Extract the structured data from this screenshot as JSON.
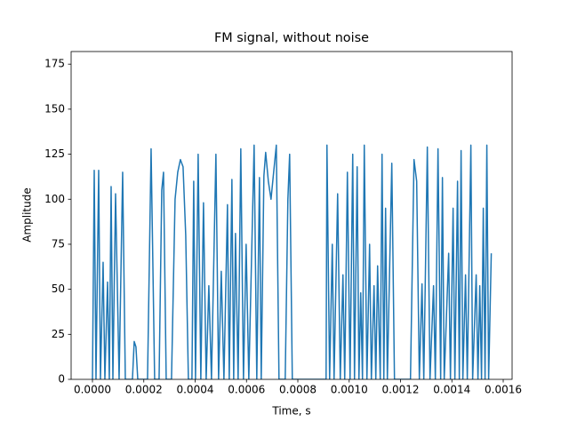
{
  "chart_data": {
    "type": "line",
    "title": "FM signal, without noise",
    "x_label": "Time, s",
    "y_label": "Amplitude",
    "x": [
      0,
      6.9e-06,
      1.38e-05,
      2.42e-05,
      3.11e-05,
      4.15e-05,
      4.84e-05,
      5.88e-05,
      6.57e-05,
      7.27e-05,
      7.96e-05,
      9e-05,
      0.0001038,
      0.0001176,
      0.000128,
      0.0001557,
      0.0001626,
      0.0001695,
      0.0001765,
      0.0002145,
      0.0002284,
      0.0002422,
      0.0002595,
      0.0002699,
      0.0002768,
      0.0002872,
      0.0003079,
      0.0003218,
      0.0003322,
      0.0003425,
      0.0003529,
      0.0003633,
      0.0003737,
      0.0003875,
      0.0003944,
      0.0004014,
      0.0004117,
      0.0004221,
      0.0004325,
      0.0004429,
      0.0004533,
      0.0004636,
      0.0004809,
      0.0004913,
      0.0005017,
      0.0005121,
      0.0005259,
      0.0005328,
      0.0005432,
      0.0005501,
      0.0005571,
      0.0005674,
      0.0005778,
      0.0005882,
      0.0005986,
      0.000609,
      0.0006297,
      0.0006401,
      0.0006505,
      0.0006574,
      0.0006678,
      0.0006747,
      0.0006851,
      0.0006955,
      0.0007058,
      0.0007162,
      0.0007266,
      0.0007508,
      0.0007612,
      0.0007681,
      0.0007785,
      0.0007993,
      0.00091,
      0.0009134,
      0.0009238,
      0.0009342,
      0.0009411,
      0.000955,
      0.0009653,
      0.0009757,
      0.0009826,
      0.000993,
      0.0010034,
      0.0010138,
      0.0010207,
      0.0010311,
      0.001038,
      0.0010449,
      0.0010518,
      0.0010588,
      0.0010691,
      0.0010795,
      0.0010864,
      0.0010968,
      0.0011037,
      0.0011107,
      0.001121,
      0.001128,
      0.0011349,
      0.0011418,
      0.0011487,
      0.001166,
      0.0011764,
      0.0011902,
      0.0012387,
      0.0012525,
      0.0012629,
      0.0012733,
      0.0012837,
      0.0012906,
      0.0013044,
      0.0013148,
      0.0013286,
      0.0013356,
      0.001346,
      0.0013563,
      0.0013632,
      0.0013702,
      0.0013875,
      0.0013944,
      0.0014048,
      0.0014117,
      0.0014221,
      0.001429,
      0.0014359,
      0.0014428,
      0.0014532,
      0.0014601,
      0.001474,
      0.0014809,
      0.0014947,
      0.0015016,
      0.0015086,
      0.0015155,
      0.0015224,
      0.0015293,
      0.0015362,
      0.0015432,
      0.0015535
    ],
    "series": [
      {
        "color": "#1f77b4",
        "values": [
          0,
          116,
          0,
          116,
          0,
          65,
          0,
          54,
          0,
          107,
          0,
          103,
          0,
          115,
          0,
          0,
          21,
          18,
          0,
          0,
          128,
          0,
          0,
          105,
          115,
          0,
          0,
          100,
          115,
          122,
          118,
          80,
          0,
          0,
          110,
          0,
          125,
          0,
          98,
          0,
          52,
          0,
          125,
          0,
          60,
          0,
          97,
          0,
          111,
          0,
          81,
          0,
          128,
          0,
          75,
          0,
          130,
          0,
          112,
          0,
          113,
          126,
          110,
          100,
          115,
          130,
          0,
          0,
          100,
          125,
          0,
          0,
          0,
          130,
          0,
          75,
          0,
          103,
          0,
          58,
          0,
          115,
          0,
          125,
          0,
          118,
          0,
          48,
          0,
          130,
          0,
          75,
          0,
          52,
          0,
          63,
          0,
          125,
          0,
          95,
          0,
          120,
          0,
          0,
          0,
          122,
          110,
          0,
          53,
          0,
          129,
          0,
          52,
          0,
          128,
          0,
          112,
          0,
          70,
          0,
          95,
          0,
          110,
          0,
          127,
          0,
          58,
          0,
          130,
          0,
          58,
          0,
          52,
          0,
          95,
          0,
          130,
          0,
          70
        ]
      }
    ],
    "xlim": [
      -8.31e-05,
      0.0016346
    ],
    "ylim": [
      0,
      182
    ],
    "xticks": [
      {
        "value": 0,
        "label": "0.0000"
      },
      {
        "value": 0.0002,
        "label": "0.0002"
      },
      {
        "value": 0.0004,
        "label": "0.0004"
      },
      {
        "value": 0.0006,
        "label": "0.0006"
      },
      {
        "value": 0.0008,
        "label": "0.0008"
      },
      {
        "value": 0.001,
        "label": "0.0010"
      },
      {
        "value": 0.0012,
        "label": "0.0012"
      },
      {
        "value": 0.0014,
        "label": "0.0014"
      },
      {
        "value": 0.0016,
        "label": "0.0016"
      }
    ],
    "yticks": [
      0,
      25,
      50,
      75,
      100,
      125,
      150,
      175
    ]
  }
}
